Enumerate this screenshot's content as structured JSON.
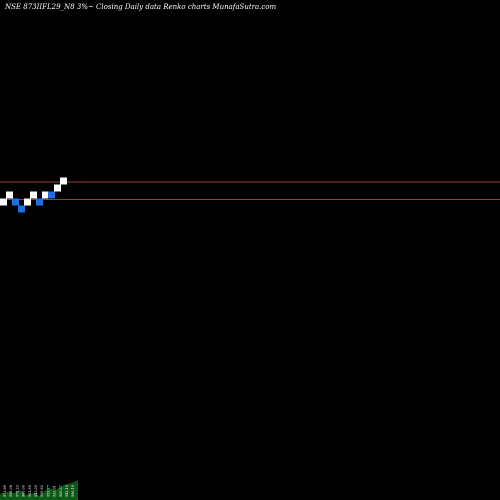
{
  "chart_data": {
    "type": "renko",
    "title": "NSE 873IIFL29_N8 3%~  Closing Daily data  Renko  charts MunafaSutra.com",
    "reference_lines": {
      "upper": 3.0,
      "lower": 0.5,
      "color": "#c8553d"
    },
    "bricks": [
      {
        "level": 0,
        "direction": "up"
      },
      {
        "level": 1,
        "direction": "up"
      },
      {
        "level": 0,
        "direction": "down"
      },
      {
        "level": -1,
        "direction": "down"
      },
      {
        "level": 0,
        "direction": "up"
      },
      {
        "level": 1,
        "direction": "up"
      },
      {
        "level": 0,
        "direction": "down"
      },
      {
        "level": 1,
        "direction": "up"
      },
      {
        "level": 1,
        "direction": "down"
      },
      {
        "level": 2,
        "direction": "up"
      },
      {
        "level": 3,
        "direction": "up"
      }
    ],
    "volume_labels": [
      "973.69",
      "998.08",
      "975.23",
      "960.00",
      "952.89",
      "943.39",
      "950.83",
      "959.77",
      "932.01",
      "908.57",
      "942.10",
      "996.19"
    ],
    "colors": {
      "up_brick": "#ffffff",
      "down_brick": "#1f6fe0",
      "background": "#000000",
      "volume": "#0d5a16"
    }
  }
}
